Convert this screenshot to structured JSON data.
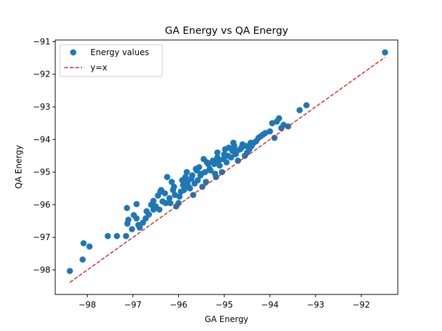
{
  "chart_data": {
    "type": "scatter",
    "title": "GA Energy vs QA Energy",
    "xlabel": "GA Energy",
    "ylabel": "QA Energy",
    "xlim": [
      -98.7,
      -91.2
    ],
    "ylim": [
      -98.75,
      -90.95
    ],
    "xticks": [
      -98,
      -97,
      -96,
      -95,
      -94,
      -93,
      -92
    ],
    "yticks": [
      -98,
      -97,
      -96,
      -95,
      -94,
      -93,
      -92,
      -91
    ],
    "xtick_labels": [
      "−98",
      "−97",
      "−96",
      "−95",
      "−94",
      "−93",
      "−92"
    ],
    "ytick_labels": [
      "−98",
      "−97",
      "−96",
      "−95",
      "−94",
      "−93",
      "−92",
      "−91"
    ],
    "grid": false,
    "legend": {
      "placement": "top-left"
    },
    "series": [
      {
        "name": "Energy values",
        "kind": "scatter",
        "color": "#1f77b4",
        "points": [
          [
            -98.38,
            -98.03
          ],
          [
            -98.1,
            -97.68
          ],
          [
            -98.08,
            -97.18
          ],
          [
            -97.95,
            -97.28
          ],
          [
            -97.55,
            -96.96
          ],
          [
            -97.35,
            -96.96
          ],
          [
            -97.15,
            -96.96
          ],
          [
            -97.02,
            -96.75
          ],
          [
            -96.88,
            -96.62
          ],
          [
            -96.85,
            -96.7
          ],
          [
            -96.78,
            -96.55
          ],
          [
            -96.72,
            -96.42
          ],
          [
            -97.12,
            -96.58
          ],
          [
            -97.1,
            -96.46
          ],
          [
            -96.92,
            -96.42
          ],
          [
            -96.98,
            -96.32
          ],
          [
            -97.13,
            -96.1
          ],
          [
            -96.92,
            -95.98
          ],
          [
            -96.6,
            -96.0
          ],
          [
            -96.55,
            -95.88
          ],
          [
            -96.45,
            -95.72
          ],
          [
            -96.38,
            -95.55
          ],
          [
            -96.25,
            -95.15
          ],
          [
            -96.3,
            -95.65
          ],
          [
            -96.2,
            -95.8
          ],
          [
            -96.12,
            -95.55
          ],
          [
            -96.1,
            -95.45
          ],
          [
            -96.05,
            -96.05
          ],
          [
            -96.0,
            -95.95
          ],
          [
            -95.95,
            -95.6
          ],
          [
            -95.9,
            -95.4
          ],
          [
            -95.85,
            -95.15
          ],
          [
            -95.8,
            -95.3
          ],
          [
            -95.75,
            -95.5
          ],
          [
            -95.7,
            -95.1
          ],
          [
            -95.68,
            -95.7
          ],
          [
            -95.62,
            -94.9
          ],
          [
            -95.58,
            -95.25
          ],
          [
            -95.55,
            -94.85
          ],
          [
            -95.5,
            -95.05
          ],
          [
            -95.48,
            -95.45
          ],
          [
            -95.45,
            -94.6
          ],
          [
            -95.4,
            -95.3
          ],
          [
            -95.35,
            -94.75
          ],
          [
            -95.3,
            -94.95
          ],
          [
            -95.25,
            -94.65
          ],
          [
            -95.2,
            -95.05
          ],
          [
            -95.18,
            -95.15
          ],
          [
            -95.15,
            -94.55
          ],
          [
            -95.1,
            -94.8
          ],
          [
            -95.05,
            -95.0
          ],
          [
            -95.0,
            -94.45
          ],
          [
            -94.95,
            -94.7
          ],
          [
            -94.9,
            -94.25
          ],
          [
            -94.85,
            -94.55
          ],
          [
            -94.8,
            -94.1
          ],
          [
            -94.75,
            -94.45
          ],
          [
            -94.7,
            -94.65
          ],
          [
            -94.65,
            -94.3
          ],
          [
            -94.6,
            -94.15
          ],
          [
            -94.55,
            -94.5
          ],
          [
            -94.5,
            -94.4
          ],
          [
            -94.45,
            -94.3
          ],
          [
            -94.4,
            -94.2
          ],
          [
            -94.35,
            -94.1
          ],
          [
            -94.3,
            -94.05
          ],
          [
            -94.25,
            -93.95
          ],
          [
            -94.2,
            -93.9
          ],
          [
            -94.15,
            -93.85
          ],
          [
            -94.1,
            -93.8
          ],
          [
            -94.0,
            -93.75
          ],
          [
            -93.95,
            -93.5
          ],
          [
            -93.9,
            -93.95
          ],
          [
            -93.85,
            -93.45
          ],
          [
            -93.8,
            -93.35
          ],
          [
            -93.75,
            -93.65
          ],
          [
            -93.7,
            -93.55
          ],
          [
            -93.6,
            -93.6
          ],
          [
            -93.35,
            -93.1
          ],
          [
            -93.2,
            -92.95
          ],
          [
            -91.48,
            -91.33
          ],
          [
            -96.7,
            -96.2
          ],
          [
            -96.65,
            -96.3
          ],
          [
            -96.5,
            -96.05
          ],
          [
            -96.42,
            -96.15
          ],
          [
            -96.35,
            -95.9
          ],
          [
            -96.28,
            -95.95
          ],
          [
            -96.18,
            -95.95
          ],
          [
            -96.08,
            -95.7
          ],
          [
            -95.98,
            -95.75
          ],
          [
            -95.88,
            -95.55
          ],
          [
            -95.78,
            -95.45
          ],
          [
            -95.72,
            -95.2
          ],
          [
            -95.65,
            -95.35
          ],
          [
            -95.52,
            -95.1
          ],
          [
            -95.42,
            -95.0
          ],
          [
            -95.32,
            -94.9
          ],
          [
            -95.22,
            -94.75
          ],
          [
            -95.12,
            -94.65
          ],
          [
            -95.02,
            -94.6
          ],
          [
            -94.92,
            -94.5
          ],
          [
            -94.82,
            -94.35
          ],
          [
            -94.72,
            -94.35
          ],
          [
            -94.62,
            -94.25
          ],
          [
            -94.52,
            -94.2
          ],
          [
            -94.42,
            -94.1
          ],
          [
            -96.55,
            -96.15
          ],
          [
            -96.4,
            -95.6
          ],
          [
            -96.15,
            -95.3
          ],
          [
            -95.92,
            -95.25
          ],
          [
            -95.82,
            -95.0
          ],
          [
            -95.6,
            -94.95
          ],
          [
            -95.38,
            -94.7
          ],
          [
            -95.15,
            -94.4
          ],
          [
            -94.98,
            -94.3
          ],
          [
            -94.78,
            -94.2
          ]
        ]
      },
      {
        "name": "y=x",
        "kind": "line",
        "color": "#d62728",
        "dash": true,
        "points": [
          [
            -98.38,
            -98.38
          ],
          [
            -91.48,
            -91.48
          ]
        ]
      }
    ]
  }
}
